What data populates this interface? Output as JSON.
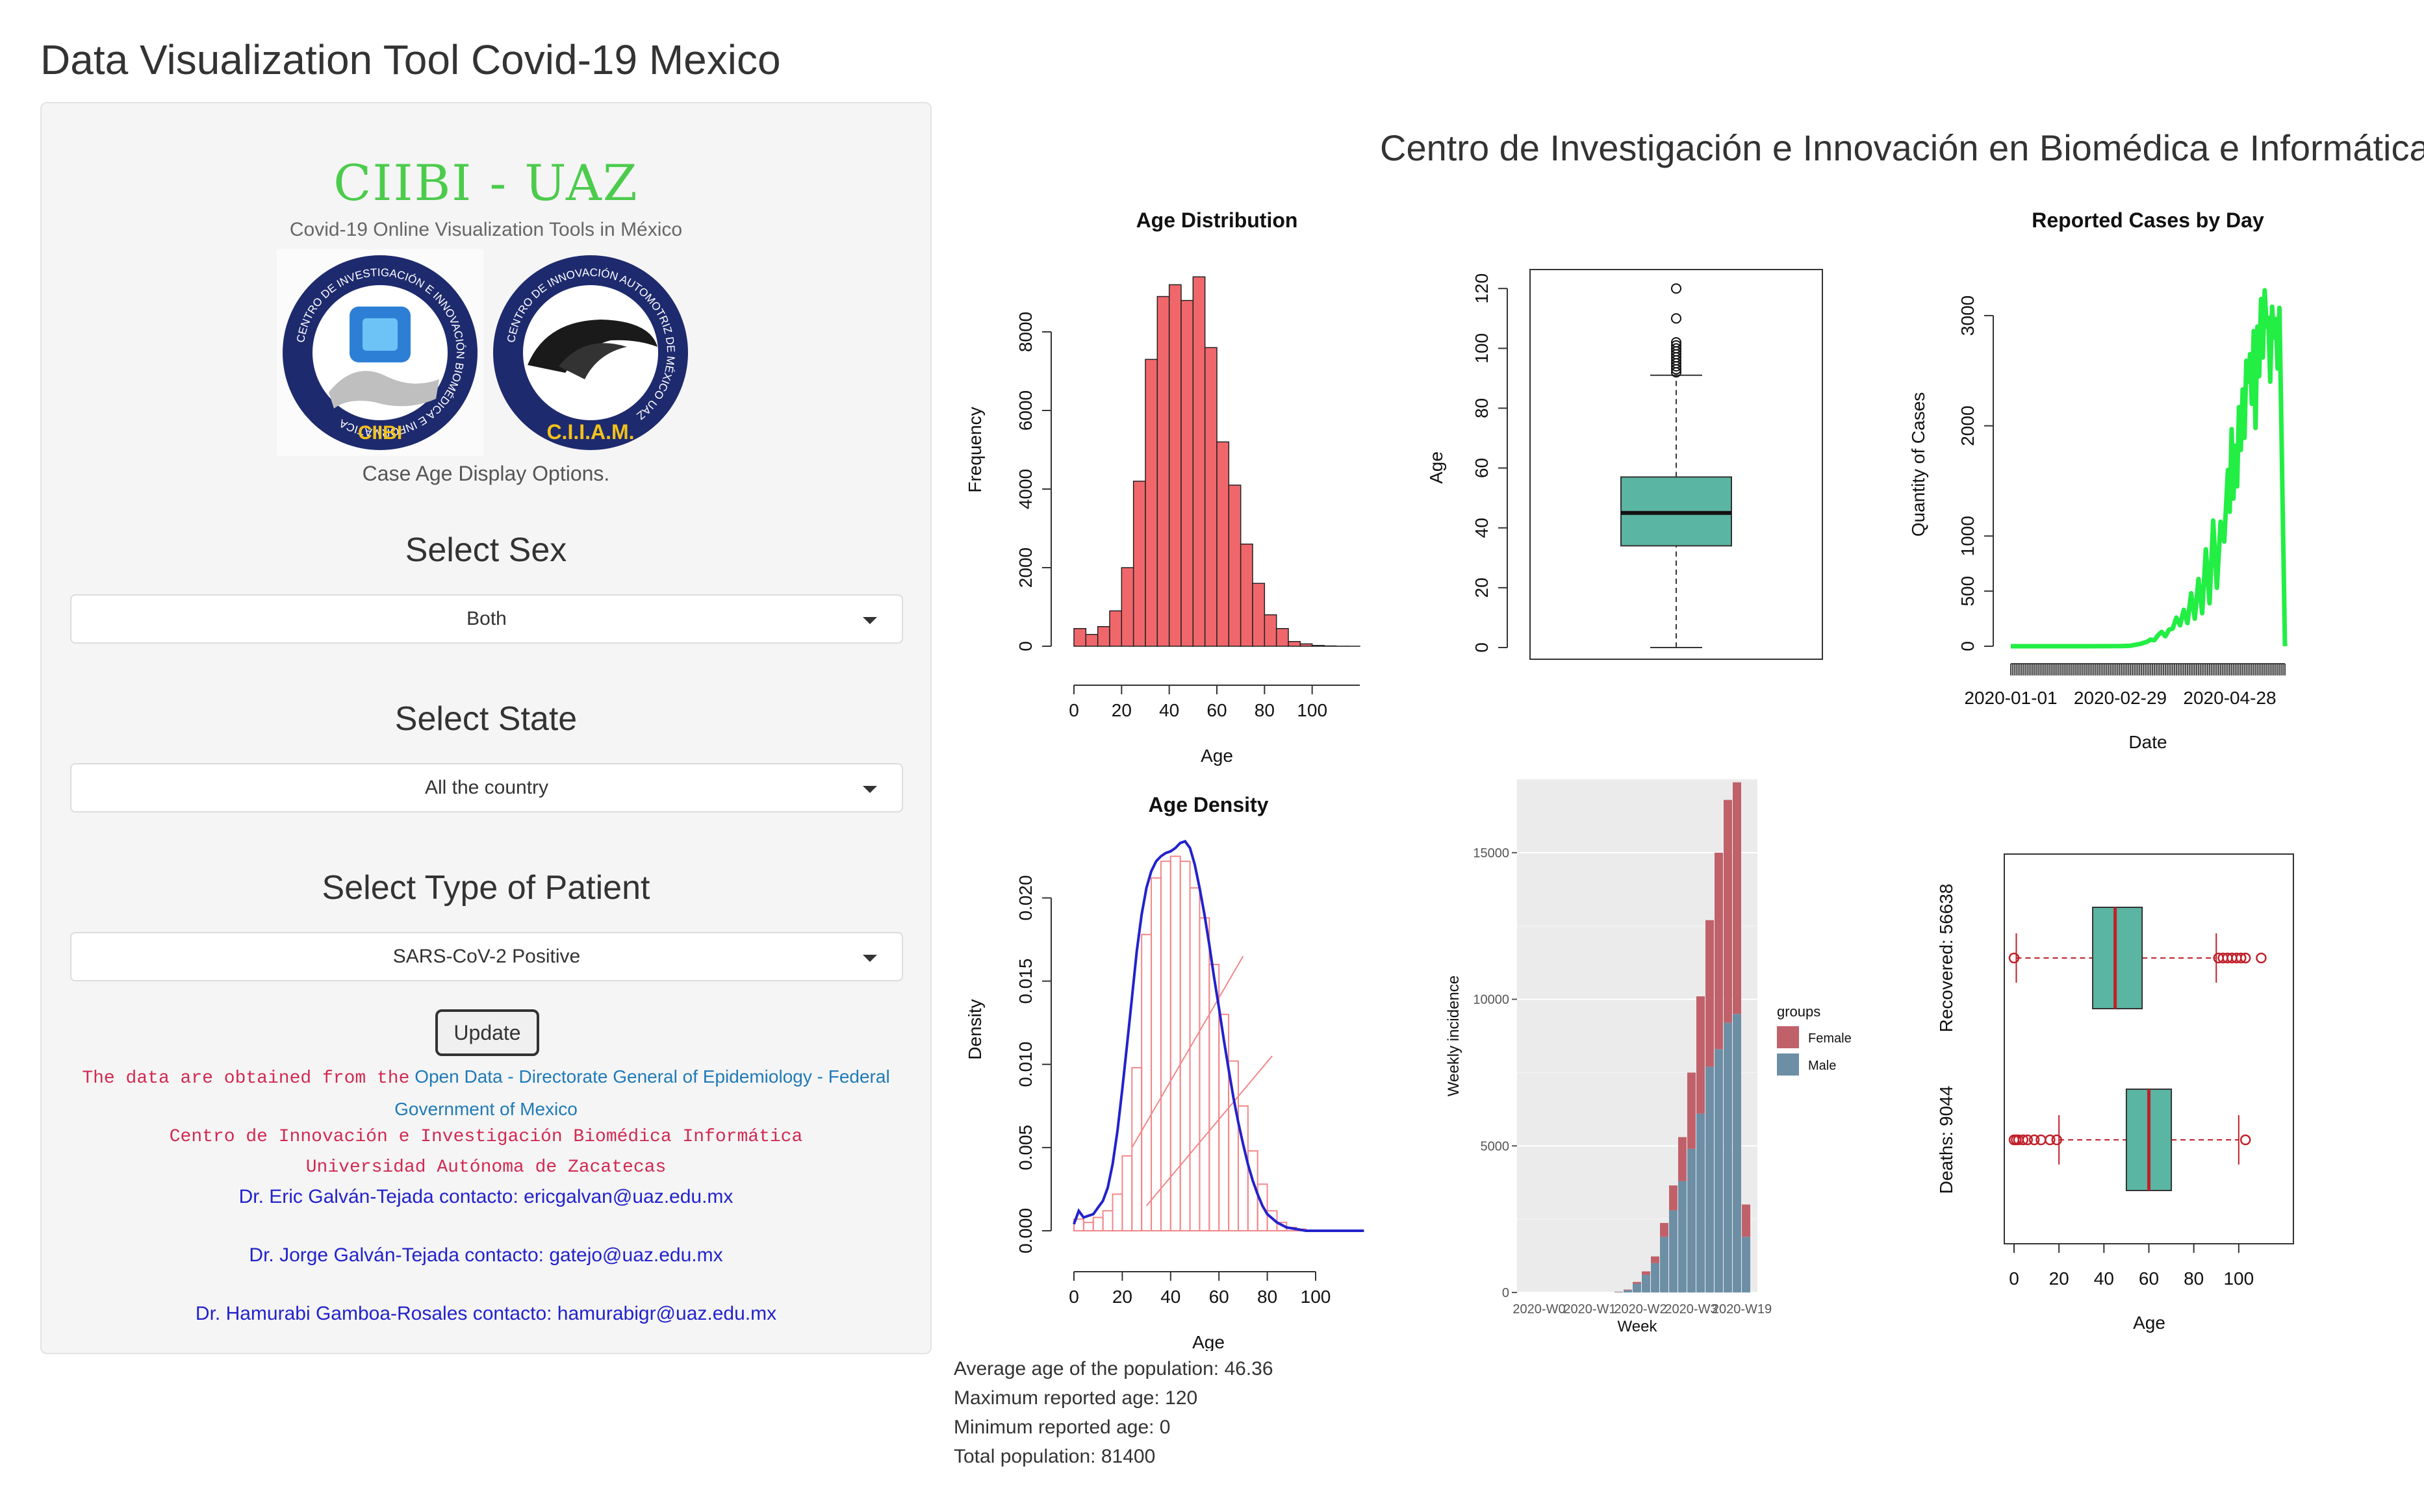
{
  "app": {
    "title": "Data Visualization Tool Covid-19 Mexico"
  },
  "sidebar": {
    "brand": "CIIBI - UAZ",
    "brand_subtitle": "Covid-19 Online Visualization Tools in México",
    "logos": {
      "left_ring_text": "CENTRO DE INVESTIGACIÓN E INNOVACIÓN BIOMÉDICA E INFORMÁTICA",
      "left_label": "CIIBI",
      "right_ring_text": "CENTRO DE INNOVACIÓN AUTOMOTRIZ DE MÉXICO UAZ",
      "right_label": "C.I.I.A.M."
    },
    "display_options": "Case Age Display Options.",
    "sex": {
      "label": "Select Sex",
      "value": "Both"
    },
    "state": {
      "label": "Select State",
      "value": "All the country"
    },
    "patient": {
      "label": "Select Type of Patient",
      "value": "SARS-CoV-2 Positive"
    },
    "update_label": "Update",
    "source_prefix": "The data are obtained from the",
    "source_link": "Open Data - Directorate General of Epidemiology - Federal Government of Mexico",
    "center_line": "Centro de Innovación e Investigación Biomédica Informática",
    "university_line": "Universidad Autónoma de Zacatecas",
    "contacts": [
      "Dr. Eric Galván-Tejada contacto: ericgalvan@uaz.edu.mx",
      "Dr. Jorge Galván-Tejada contacto: gatejo@uaz.edu.mx",
      "Dr. Hamurabi Gamboa-Rosales contacto: hamurabigr@uaz.edu.mx"
    ]
  },
  "main": {
    "heading": "Centro de Investigación e Innovación en Biomédica e Informática",
    "stats": {
      "average": "Average age of the population: 46.36",
      "maximum": "Maximum reported age: 120",
      "minimum": "Minimum reported age: 0",
      "total": "Total population: 81400"
    }
  },
  "colors": {
    "hist_fill": "#f0676b",
    "box_fill": "#5ab5a2",
    "cases_line": "#22ee44",
    "density_line": "#2222cc",
    "female": "#c0616a",
    "male": "#6d8fa6",
    "outlier": "#c0202a"
  },
  "chart_data": [
    {
      "id": "age_hist",
      "type": "bar",
      "title": "Age Distribution",
      "xlabel": "Age",
      "ylabel": "Frequency",
      "bin_width": 5,
      "bin_starts": [
        0,
        5,
        10,
        15,
        20,
        25,
        30,
        35,
        40,
        45,
        50,
        55,
        60,
        65,
        70,
        75,
        80,
        85,
        90,
        95,
        100,
        105,
        110,
        115
      ],
      "values": [
        450,
        300,
        500,
        900,
        2000,
        4200,
        7300,
        8900,
        9200,
        8800,
        9400,
        7600,
        5200,
        4100,
        2600,
        1600,
        800,
        450,
        120,
        60,
        20,
        8,
        2,
        1
      ],
      "xticks": [
        0,
        20,
        40,
        60,
        80,
        100
      ],
      "yticks": [
        0,
        2000,
        4000,
        6000,
        8000
      ],
      "xlim": [
        0,
        120
      ],
      "ylim": [
        0,
        10000
      ]
    },
    {
      "id": "age_box",
      "type": "box",
      "title": "",
      "ylabel": "Age",
      "yticks": [
        0,
        20,
        40,
        60,
        80,
        100,
        120
      ],
      "ylim": [
        0,
        122
      ],
      "whisker_low": 0,
      "q1": 34,
      "median": 45,
      "q3": 57,
      "whisker_high": 91,
      "outliers": [
        92,
        93,
        94,
        95,
        96,
        97,
        98,
        99,
        100,
        101,
        102,
        110,
        120
      ]
    },
    {
      "id": "cases_by_day",
      "type": "line",
      "title": "Reported Cases by Day",
      "xlabel": "Date",
      "ylabel": "Quantity of Cases",
      "x_ticklabels": [
        "2020-01-01",
        "2020-02-29",
        "2020-04-28"
      ],
      "yticks": [
        0,
        500,
        1000,
        2000,
        3000
      ],
      "ylim": [
        0,
        3300
      ],
      "x_days": [
        0,
        40,
        60,
        65,
        70,
        74,
        76,
        78,
        80,
        82,
        84,
        86,
        88,
        90,
        92,
        94,
        96,
        98,
        100,
        102,
        104,
        106,
        108,
        110,
        112,
        114,
        116,
        118,
        119,
        120,
        121,
        122,
        123,
        124,
        125,
        126,
        127,
        128,
        129,
        130,
        131,
        132,
        133,
        134,
        135,
        136,
        137,
        138,
        139,
        140,
        141,
        142,
        143,
        144,
        145,
        146,
        147,
        148,
        149
      ],
      "values": [
        0,
        0,
        2,
        5,
        20,
        40,
        60,
        55,
        100,
        130,
        90,
        150,
        160,
        260,
        190,
        330,
        210,
        480,
        250,
        610,
        300,
        880,
        390,
        1140,
        530,
        1130,
        950,
        1600,
        1220,
        1970,
        1340,
        1820,
        1450,
        2170,
        1780,
        2330,
        1890,
        2590,
        2400,
        2650,
        2200,
        2860,
        1980,
        2900,
        2450,
        3150,
        2620,
        3230,
        2900,
        2980,
        2400,
        3080,
        2800,
        2970,
        2520,
        3070,
        2060,
        1000,
        0
      ],
      "day_count": 150
    },
    {
      "id": "age_density",
      "type": "area",
      "title": "Age Density",
      "xlabel": "Age",
      "ylabel": "Density",
      "xticks": [
        0,
        20,
        40,
        60,
        80,
        100
      ],
      "yticks": [
        0.0,
        0.005,
        0.01,
        0.015,
        0.02
      ],
      "ytick_labels": [
        "0.000",
        "0.005",
        "0.010",
        "0.015",
        "0.020"
      ],
      "xlim": [
        0,
        125
      ],
      "ylim": [
        0,
        0.024
      ],
      "hist_bin_width": 4,
      "hist_bin_starts": [
        0,
        4,
        8,
        12,
        16,
        20,
        24,
        28,
        32,
        36,
        40,
        44,
        48,
        52,
        56,
        60,
        64,
        68,
        72,
        76,
        80,
        84,
        88,
        92
      ],
      "hist_values": [
        0.0007,
        0.0005,
        0.0008,
        0.0012,
        0.0022,
        0.0045,
        0.0098,
        0.0178,
        0.0212,
        0.0222,
        0.0225,
        0.0222,
        0.0206,
        0.0188,
        0.016,
        0.013,
        0.0102,
        0.0075,
        0.0048,
        0.0028,
        0.0012,
        0.0005,
        0.0002,
        0.0001
      ],
      "curve_x": [
        0,
        2,
        4,
        6,
        8,
        10,
        12,
        14,
        16,
        18,
        20,
        22,
        24,
        26,
        28,
        30,
        32,
        34,
        36,
        38,
        40,
        42,
        44,
        46,
        48,
        50,
        52,
        54,
        56,
        58,
        60,
        62,
        64,
        66,
        68,
        70,
        72,
        74,
        76,
        78,
        80,
        84,
        88,
        92,
        96,
        100,
        110,
        120
      ],
      "curve_y": [
        0.0004,
        0.0012,
        0.0008,
        0.0009,
        0.001,
        0.0014,
        0.0018,
        0.0026,
        0.004,
        0.006,
        0.0085,
        0.0112,
        0.014,
        0.0168,
        0.019,
        0.0206,
        0.0216,
        0.0222,
        0.0225,
        0.0227,
        0.0228,
        0.023,
        0.0233,
        0.0234,
        0.023,
        0.022,
        0.0206,
        0.019,
        0.0172,
        0.0152,
        0.0134,
        0.0115,
        0.0097,
        0.008,
        0.0065,
        0.0052,
        0.004,
        0.003,
        0.0022,
        0.0015,
        0.001,
        0.0005,
        0.0002,
        0.0001,
        0.0,
        0.0,
        0.0,
        0.0
      ]
    },
    {
      "id": "weekly_incidence",
      "type": "bar",
      "stacked": true,
      "title": "",
      "xlabel": "Week",
      "ylabel": "Weekly incidence",
      "legend_title": "groups",
      "x_ticklabels": [
        "2020-W0",
        "2020-W1",
        "2020-W2",
        "2020-W3",
        "2020-W19"
      ],
      "yticks": [
        0,
        5000,
        10000,
        15000
      ],
      "ylim": [
        0,
        17500
      ],
      "series": [
        {
          "name": "Female",
          "values": [
            0,
            0,
            0,
            0,
            0,
            0,
            0,
            0,
            0,
            0,
            10,
            20,
            60,
            120,
            230,
            470,
            850,
            1500,
            2600,
            4000,
            5000,
            6700,
            7600,
            7900,
            1100
          ]
        },
        {
          "name": "Male",
          "values": [
            0,
            0,
            0,
            0,
            0,
            0,
            0,
            0,
            0,
            0,
            15,
            80,
            300,
            600,
            1000,
            1900,
            2800,
            3800,
            4900,
            6100,
            7700,
            8300,
            9200,
            9500,
            1900
          ]
        }
      ]
    },
    {
      "id": "outcome_box",
      "type": "box",
      "orientation": "horizontal",
      "xlabel": "Age",
      "xticks": [
        0,
        20,
        40,
        60,
        80,
        100
      ],
      "xlim": [
        0,
        120
      ],
      "groups": [
        {
          "label": "Recovered: 56638",
          "whisker_low": 1,
          "q1": 35,
          "median": 45,
          "q3": 57,
          "whisker_high": 90,
          "outliers": [
            0,
            91,
            93,
            95,
            97,
            99,
            101,
            103,
            110
          ]
        },
        {
          "label": "Deaths: 9044",
          "whisker_low": 20,
          "q1": 50,
          "median": 60,
          "q3": 70,
          "whisker_high": 100,
          "outliers": [
            0,
            1,
            2,
            4,
            6,
            9,
            12,
            16,
            19,
            103
          ]
        }
      ]
    }
  ]
}
